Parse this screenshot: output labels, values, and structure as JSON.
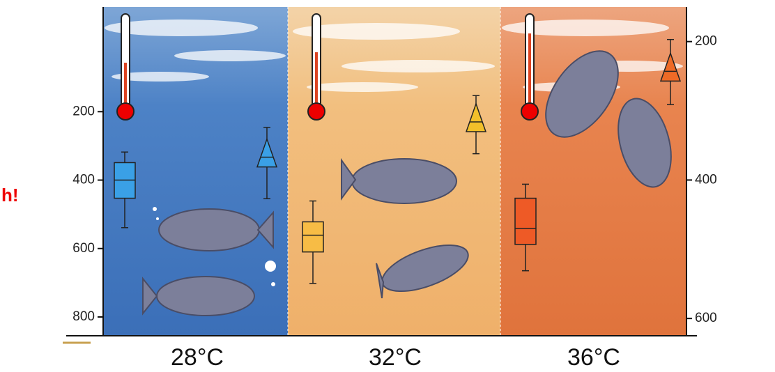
{
  "chart_data": {
    "type": "box",
    "annotation": "h!",
    "categories": [
      "28°C",
      "32°C",
      "36°C"
    ],
    "ylim": [
      -106,
      855
    ],
    "yticks": [
      200,
      400,
      600,
      800
    ],
    "y2lim": [
      150,
      625
    ],
    "y2ticks": [
      200,
      400,
      600
    ],
    "boxes": [
      {
        "color": "#3aa0e6",
        "whislo": 318,
        "q1": 349,
        "med": 400,
        "q3": 453,
        "whishi": 539
      },
      {
        "color": "#f7bc45",
        "whislo": 461,
        "q1": 522,
        "med": 561,
        "q3": 610,
        "whishi": 702
      },
      {
        "color": "#ee5a26",
        "whislo": 412,
        "q1": 453,
        "med": 541,
        "q3": 588,
        "whishi": 665
      }
    ],
    "markers": [
      {
        "color": "#3aa0e6",
        "axis": "y2",
        "low": 324,
        "mid": 367,
        "high": 427
      },
      {
        "color": "#f2c02a",
        "axis": "y2",
        "low": 278,
        "mid": 316,
        "high": 362
      },
      {
        "color": "#ee6a26",
        "axis": "y2",
        "low": 197,
        "mid": 243,
        "high": 291
      }
    ]
  }
}
